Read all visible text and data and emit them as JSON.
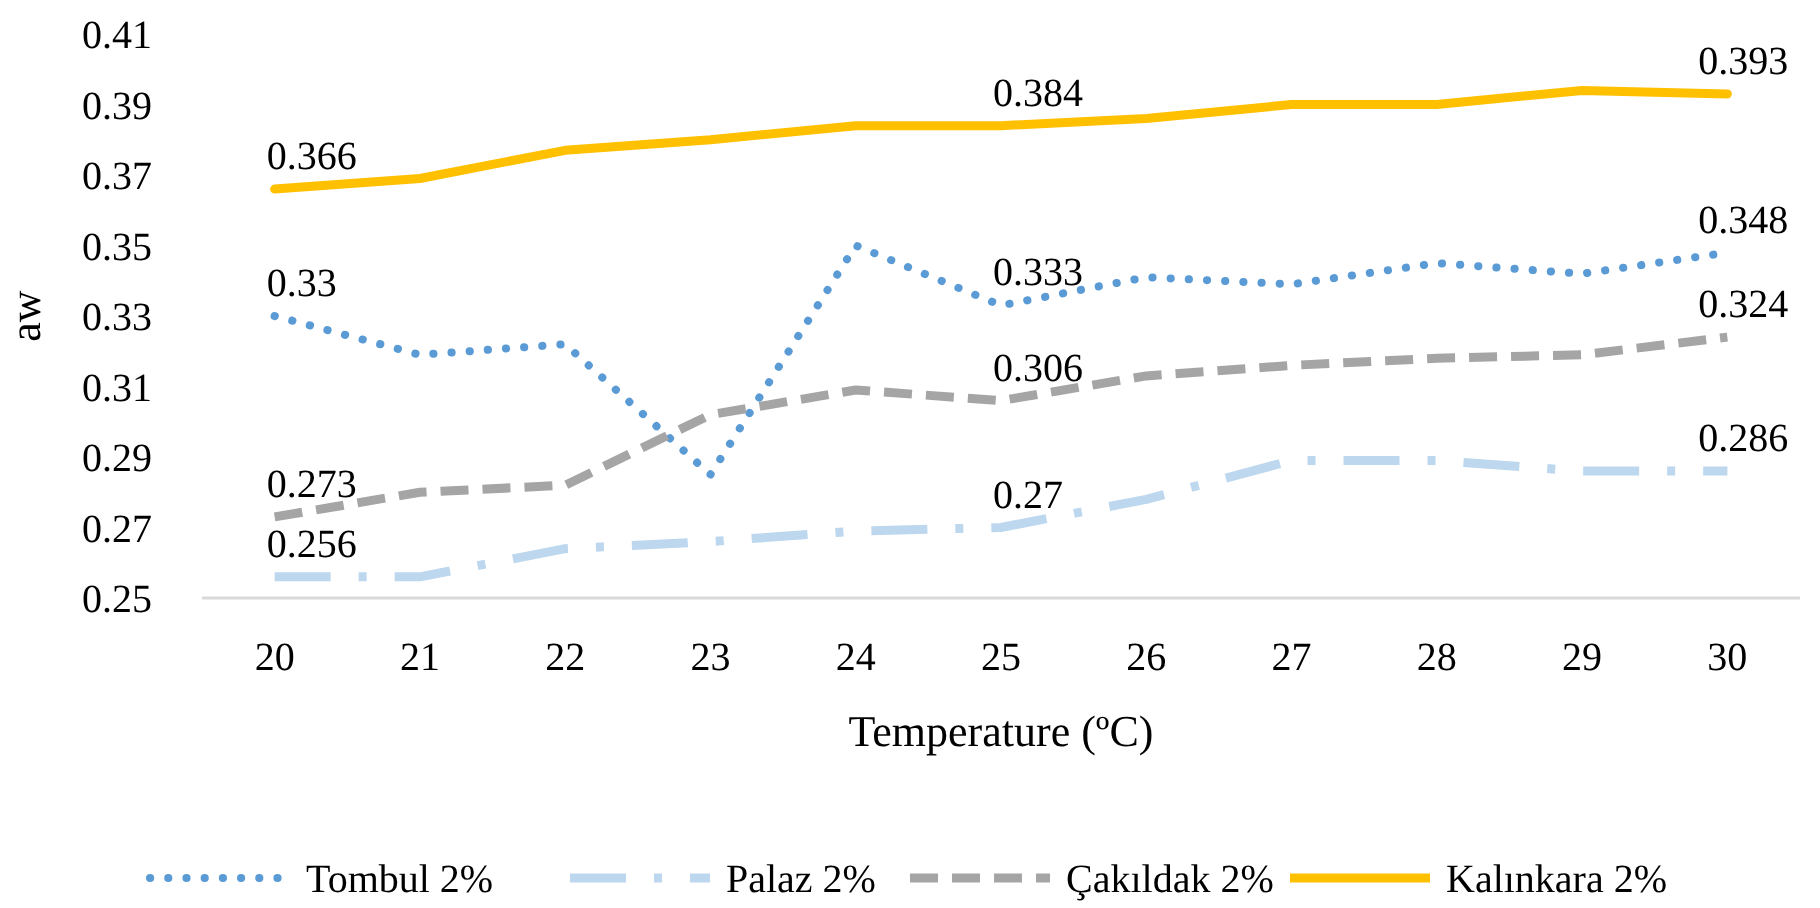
{
  "chart_data": {
    "type": "line",
    "xlabel": "Temperature (ºC)",
    "ylabel": "aw",
    "categories": [
      "20",
      "21",
      "22",
      "23",
      "24",
      "25",
      "26",
      "27",
      "28",
      "29",
      "30"
    ],
    "ylim": [
      0.25,
      0.41
    ],
    "yticks": [
      0.25,
      0.27,
      0.29,
      0.31,
      0.33,
      0.35,
      0.37,
      0.39,
      0.41
    ],
    "grid": false,
    "legend": "bottom",
    "series": [
      {
        "name": "Tombul 2%",
        "color": "#5b9bd5",
        "line_style": "dotted",
        "values": [
          0.33,
          0.319,
          0.322,
          0.285,
          0.35,
          0.333,
          0.341,
          0.339,
          0.345,
          0.342,
          0.348
        ],
        "value_labels": [
          "0.33",
          null,
          null,
          null,
          null,
          "0.333",
          null,
          null,
          null,
          null,
          "0.348"
        ]
      },
      {
        "name": "Palaz 2%",
        "color": "#bdd7ee",
        "line_style": "dashdot",
        "values": [
          0.256,
          0.256,
          0.264,
          0.266,
          0.269,
          0.27,
          0.278,
          0.289,
          0.289,
          0.286,
          0.286
        ],
        "value_labels": [
          "0.256",
          null,
          null,
          null,
          null,
          "0.27",
          null,
          null,
          null,
          null,
          "0.286"
        ]
      },
      {
        "name": "Çakıldak 2%",
        "color": "#a5a5a5",
        "line_style": "dashed",
        "values": [
          0.273,
          0.28,
          0.282,
          0.302,
          0.309,
          0.306,
          0.313,
          0.316,
          0.318,
          0.319,
          0.324
        ],
        "value_labels": [
          "0.273",
          null,
          null,
          null,
          null,
          "0.306",
          null,
          null,
          null,
          null,
          "0.324"
        ]
      },
      {
        "name": "Kalınkara 2%",
        "color": "#ffc000",
        "line_style": "solid",
        "values": [
          0.366,
          0.369,
          0.377,
          0.38,
          0.384,
          0.384,
          0.386,
          0.39,
          0.39,
          0.394,
          0.393
        ],
        "value_labels": [
          "0.366",
          null,
          null,
          null,
          null,
          "0.384",
          null,
          null,
          null,
          null,
          "0.393"
        ]
      }
    ]
  }
}
